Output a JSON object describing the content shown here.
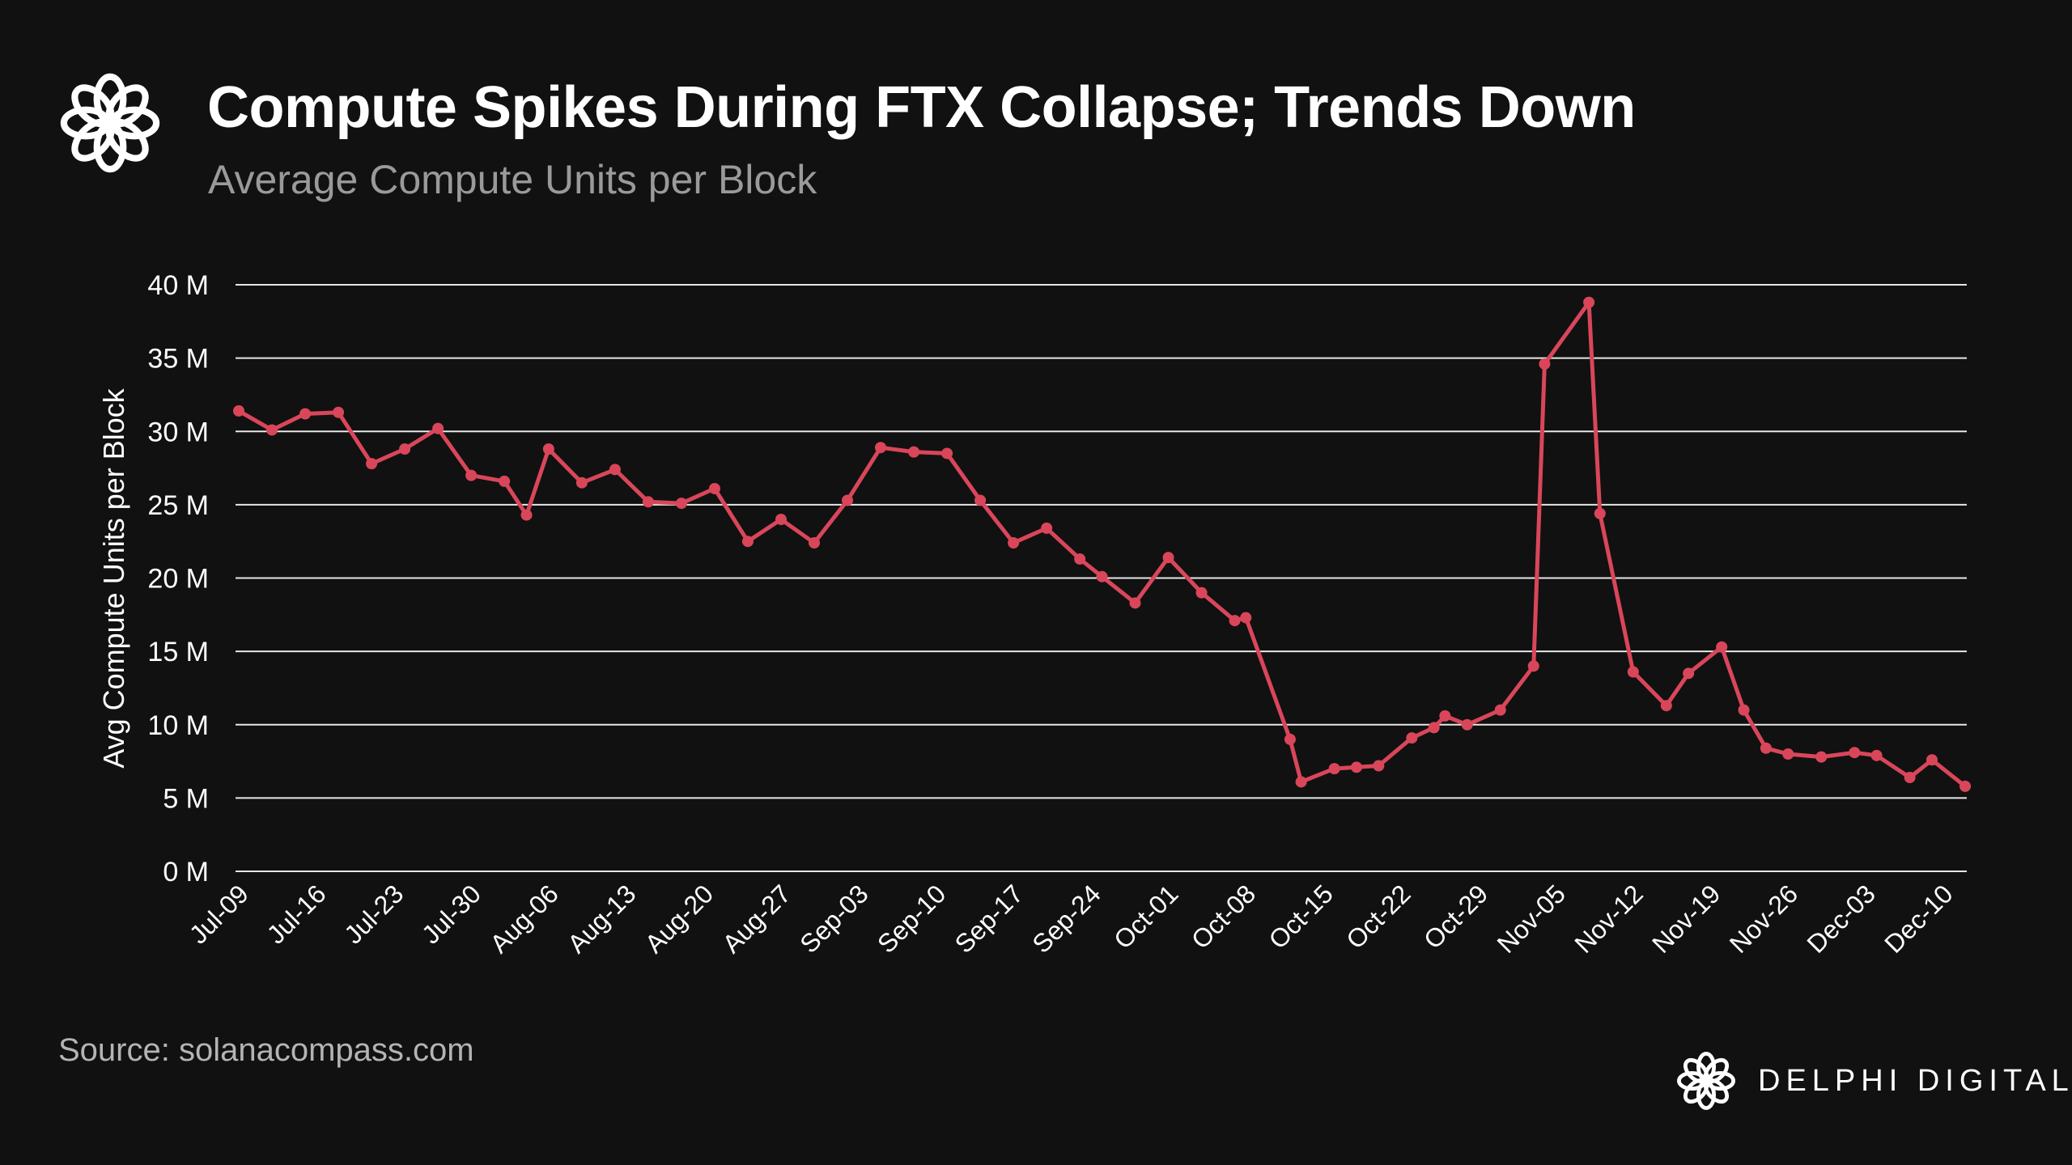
{
  "header": {
    "title": "Compute Spikes During FTX Collapse; Trends Down",
    "subtitle": "Average Compute Units per Block",
    "logo_icon": "delphi-flower-logo-icon"
  },
  "footer": {
    "source": "Source: solanacompass.com",
    "brand": "DELPHI DIGITAL"
  },
  "colors": {
    "background": "#111111",
    "line": "#d9465a",
    "grid": "#ffffff",
    "text": "#ffffff",
    "subtitle": "#9a9a9a"
  },
  "chart_data": {
    "type": "line",
    "title": "Compute Spikes During FTX Collapse; Trends Down",
    "subtitle": "Average Compute Units per Block",
    "xlabel": "",
    "ylabel": "Avg Compute Units per Block",
    "ylim": [
      0,
      40
    ],
    "y_unit": "M",
    "yticks": [
      0,
      5,
      10,
      15,
      20,
      25,
      30,
      35,
      40
    ],
    "ytick_labels": [
      "0 M",
      "5 M",
      "10 M",
      "15 M",
      "20 M",
      "25 M",
      "30 M",
      "35 M",
      "40 M"
    ],
    "grid": true,
    "legend": "none",
    "xtick_labels": [
      "Jul-09",
      "Jul-16",
      "Jul-23",
      "Jul-30",
      "Aug-06",
      "Aug-13",
      "Aug-20",
      "Aug-27",
      "Sep-03",
      "Sep-10",
      "Sep-17",
      "Sep-24",
      "Oct-01",
      "Oct-08",
      "Oct-15",
      "Oct-22",
      "Oct-29",
      "Nov-05",
      "Nov-12",
      "Nov-19",
      "Nov-26",
      "Dec-03",
      "Dec-10"
    ],
    "x_start": "Jul-09",
    "x_end": "Dec-12",
    "series": [
      {
        "color": "#d9465a",
        "points": [
          {
            "x": "Jul-09",
            "y": 31.4
          },
          {
            "x": "Jul-12",
            "y": 30.1
          },
          {
            "x": "Jul-15",
            "y": 31.2
          },
          {
            "x": "Jul-18",
            "y": 31.3
          },
          {
            "x": "Jul-21",
            "y": 27.8
          },
          {
            "x": "Jul-24",
            "y": 28.8
          },
          {
            "x": "Jul-27",
            "y": 30.2
          },
          {
            "x": "Jul-30",
            "y": 27.0
          },
          {
            "x": "Aug-02",
            "y": 26.6
          },
          {
            "x": "Aug-04",
            "y": 24.3
          },
          {
            "x": "Aug-06",
            "y": 28.8
          },
          {
            "x": "Aug-09",
            "y": 26.5
          },
          {
            "x": "Aug-12",
            "y": 27.4
          },
          {
            "x": "Aug-15",
            "y": 25.2
          },
          {
            "x": "Aug-18",
            "y": 25.1
          },
          {
            "x": "Aug-21",
            "y": 26.1
          },
          {
            "x": "Aug-24",
            "y": 22.5
          },
          {
            "x": "Aug-27",
            "y": 24.0
          },
          {
            "x": "Aug-30",
            "y": 22.4
          },
          {
            "x": "Sep-02",
            "y": 25.3
          },
          {
            "x": "Sep-05",
            "y": 28.9
          },
          {
            "x": "Sep-08",
            "y": 28.6
          },
          {
            "x": "Sep-11",
            "y": 28.5
          },
          {
            "x": "Sep-14",
            "y": 25.3
          },
          {
            "x": "Sep-17",
            "y": 22.4
          },
          {
            "x": "Sep-20",
            "y": 23.4
          },
          {
            "x": "Sep-23",
            "y": 21.3
          },
          {
            "x": "Sep-25",
            "y": 20.1
          },
          {
            "x": "Sep-28",
            "y": 18.3
          },
          {
            "x": "Oct-01",
            "y": 21.4
          },
          {
            "x": "Oct-04",
            "y": 19.0
          },
          {
            "x": "Oct-07",
            "y": 17.1
          },
          {
            "x": "Oct-08",
            "y": 17.3
          },
          {
            "x": "Oct-12",
            "y": 9.0
          },
          {
            "x": "Oct-13",
            "y": 6.1
          },
          {
            "x": "Oct-16",
            "y": 7.0
          },
          {
            "x": "Oct-18",
            "y": 7.1
          },
          {
            "x": "Oct-20",
            "y": 7.2
          },
          {
            "x": "Oct-23",
            "y": 9.1
          },
          {
            "x": "Oct-25",
            "y": 9.8
          },
          {
            "x": "Oct-26",
            "y": 10.6
          },
          {
            "x": "Oct-28",
            "y": 10.0
          },
          {
            "x": "Oct-31",
            "y": 11.0
          },
          {
            "x": "Nov-03",
            "y": 14.0
          },
          {
            "x": "Nov-04",
            "y": 34.6
          },
          {
            "x": "Nov-08",
            "y": 38.8
          },
          {
            "x": "Nov-09",
            "y": 24.4
          },
          {
            "x": "Nov-12",
            "y": 13.6
          },
          {
            "x": "Nov-15",
            "y": 11.3
          },
          {
            "x": "Nov-17",
            "y": 13.5
          },
          {
            "x": "Nov-20",
            "y": 15.3
          },
          {
            "x": "Nov-22",
            "y": 11.0
          },
          {
            "x": "Nov-24",
            "y": 8.4
          },
          {
            "x": "Nov-26",
            "y": 8.0
          },
          {
            "x": "Nov-29",
            "y": 7.8
          },
          {
            "x": "Dec-02",
            "y": 8.1
          },
          {
            "x": "Dec-04",
            "y": 7.9
          },
          {
            "x": "Dec-07",
            "y": 6.4
          },
          {
            "x": "Dec-09",
            "y": 7.6
          },
          {
            "x": "Dec-12",
            "y": 5.8
          }
        ]
      }
    ]
  }
}
